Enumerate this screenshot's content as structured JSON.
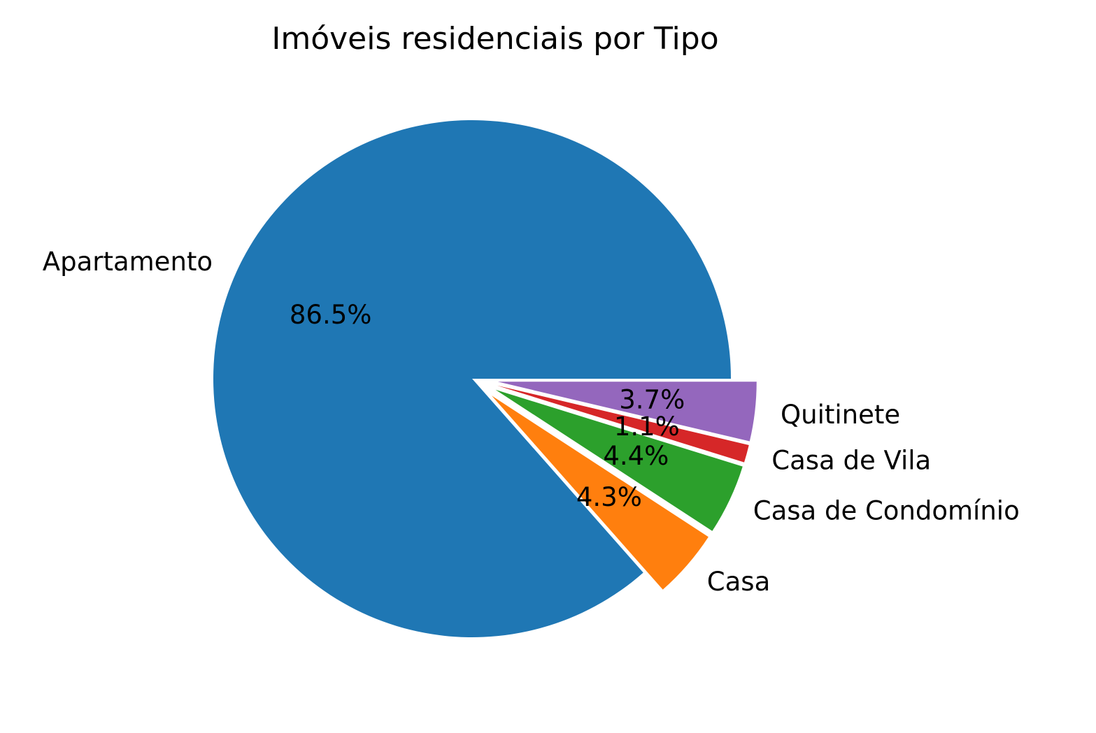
{
  "chart_data": {
    "type": "pie",
    "title": "Imóveis residenciais por Tipo",
    "categories": [
      "Apartamento",
      "Casa",
      "Casa de Condomínio",
      "Casa de Vila",
      "Quitinete"
    ],
    "values": [
      86.5,
      4.3,
      4.4,
      1.1,
      3.7
    ],
    "percent_labels": [
      "86.5%",
      "4.3%",
      "4.4%",
      "1.1%",
      "3.7%"
    ],
    "colors": [
      "#1f77b4",
      "#ff7f0e",
      "#2ca02c",
      "#d62728",
      "#9467bd"
    ],
    "exploded": [
      false,
      true,
      true,
      true,
      true
    ],
    "start_angle_deg": 0,
    "direction": "counterclockwise"
  }
}
